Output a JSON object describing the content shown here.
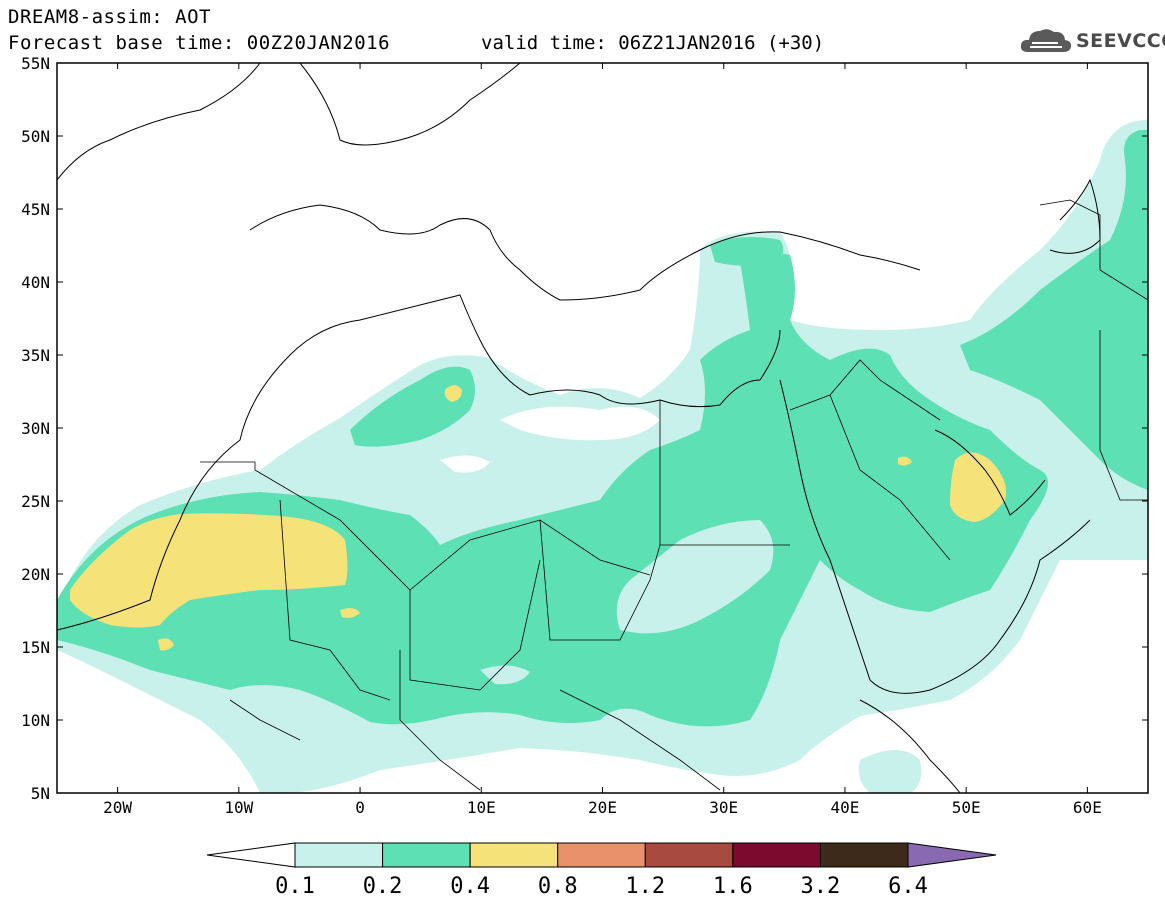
{
  "header": {
    "title": "DREAM8-assim: AOT",
    "base_time": "Forecast base time: 00Z20JAN2016",
    "valid_time": "valid time: 06Z21JAN2016 (+30)"
  },
  "logo": {
    "text": "SEEVCCC",
    "icon": "cloud-icon"
  },
  "map": {
    "lon_range": [
      -25,
      65
    ],
    "lat_range": [
      5,
      55
    ],
    "lat_labels": [
      "55N",
      "50N",
      "45N",
      "40N",
      "35N",
      "30N",
      "25N",
      "20N",
      "15N",
      "10N",
      "5N"
    ],
    "lon_labels": [
      "20W",
      "10W",
      "0",
      "10E",
      "20E",
      "30E",
      "40E",
      "50E",
      "60E"
    ]
  },
  "colorbar": {
    "ticks": [
      "0.1",
      "0.2",
      "0.4",
      "0.8",
      "1.2",
      "1.6",
      "3.2",
      "6.4"
    ],
    "colors": [
      "#ffffff",
      "#c7f1ea",
      "#5de0b4",
      "#f5e37a",
      "#e9916a",
      "#a84a3f",
      "#7b0a2e",
      "#3d2a1a",
      "#8a69b3"
    ]
  },
  "colors": {
    "low": "#c7f1ea",
    "medium": "#5de0b4",
    "high": "#f5e37a"
  }
}
